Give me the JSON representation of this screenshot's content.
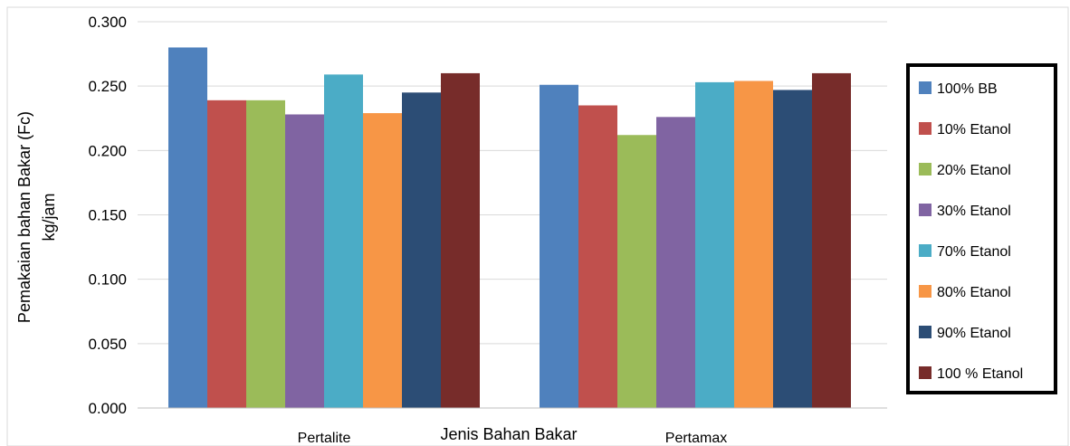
{
  "chart_data": {
    "type": "bar",
    "categories": [
      "Pertalite",
      "Pertamax"
    ],
    "xlabel": "Jenis Bahan Bakar",
    "ylabel_line1": "Pemakaian bahan Bakar (Fc)",
    "ylabel_line2": "kg/jam",
    "ylim": [
      0,
      0.3
    ],
    "yticks": [
      "0.000",
      "0.050",
      "0.100",
      "0.150",
      "0.200",
      "0.250",
      "0.300"
    ],
    "grid": true,
    "legend_position": "right",
    "series": [
      {
        "name": "100% BB",
        "color": "#4F81BD",
        "values": [
          0.28,
          0.251
        ]
      },
      {
        "name": "10% Etanol",
        "color": "#C0504D",
        "values": [
          0.239,
          0.235
        ]
      },
      {
        "name": "20% Etanol",
        "color": "#9BBB59",
        "values": [
          0.239,
          0.212
        ]
      },
      {
        "name": "30% Etanol",
        "color": "#8064A2",
        "values": [
          0.228,
          0.226
        ]
      },
      {
        "name": "70% Etanol",
        "color": "#4BACC6",
        "values": [
          0.259,
          0.253
        ]
      },
      {
        "name": "80% Etanol",
        "color": "#F79646",
        "values": [
          0.229,
          0.254
        ]
      },
      {
        "name": "90% Etanol",
        "color": "#2C4D75",
        "values": [
          0.245,
          0.247
        ]
      },
      {
        "name": "100 % Etanol",
        "color": "#772C2A",
        "values": [
          0.26,
          0.26
        ]
      }
    ]
  }
}
